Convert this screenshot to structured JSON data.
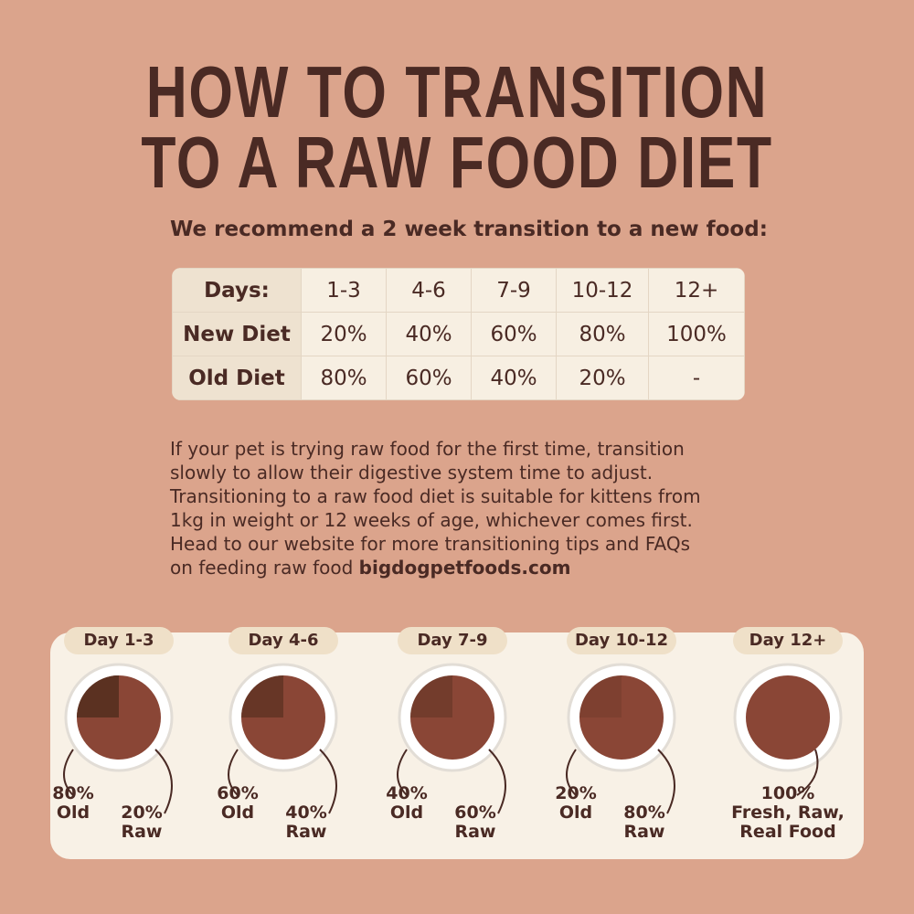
{
  "title": [
    "HOW TO TRANSITION",
    "TO A RAW FOOD DIET"
  ],
  "subtitle": "We recommend a 2 week transition to a new food:",
  "table": {
    "header": [
      "Days:",
      "1-3",
      "4-6",
      "7-9",
      "10-12",
      "12+"
    ],
    "rows": [
      [
        "New Diet",
        "20%",
        "40%",
        "60%",
        "80%",
        "100%"
      ],
      [
        "Old Diet",
        "80%",
        "60%",
        "40%",
        "20%",
        "-"
      ]
    ]
  },
  "paragraph": {
    "lines": [
      "If your pet is trying raw food for the first time, transition",
      "slowly to allow their digestive system time to adjust.",
      "Transitioning to a raw food diet is suitable for kittens from",
      "1kg in weight or 12 weeks of age, whichever comes first.",
      "Head to our website for more transitioning tips and  FAQs",
      "on feeding raw food"
    ],
    "website": "bigdogpetfoods.com"
  },
  "stages": [
    {
      "day": "Day 1-3",
      "old_pct": "80%",
      "old_label": "Old",
      "raw_pct": "20%",
      "raw_label": "Raw"
    },
    {
      "day": "Day 4-6",
      "old_pct": "60%",
      "old_label": "Old",
      "raw_pct": "40%",
      "raw_label": "Raw"
    },
    {
      "day": "Day 7-9",
      "old_pct": "40%",
      "old_label": "Old",
      "raw_pct": "60%",
      "raw_label": "Raw"
    },
    {
      "day": "Day 10-12",
      "old_pct": "20%",
      "old_label": "Old",
      "raw_pct": "80%",
      "raw_label": "Raw"
    },
    {
      "day": "Day 12+",
      "pct": "100%",
      "label_lines": [
        "Fresh, Raw,",
        "Real Food"
      ]
    }
  ]
}
